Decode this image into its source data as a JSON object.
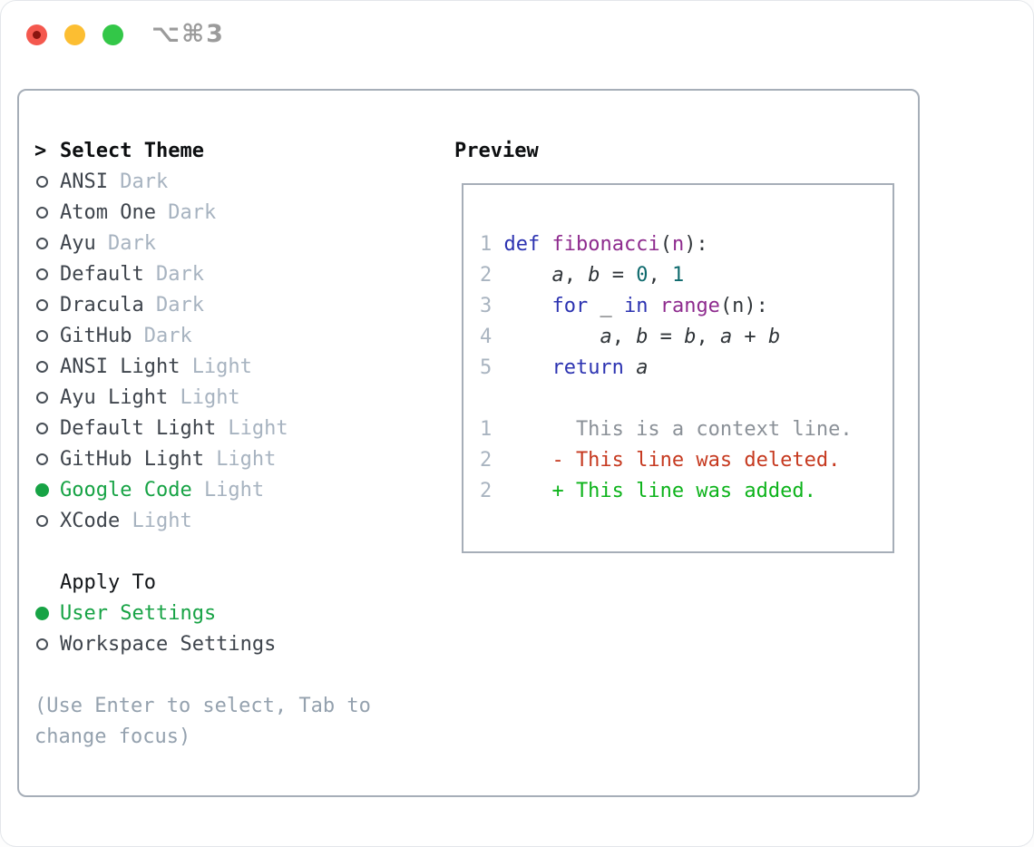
{
  "window": {
    "title": "⌥⌘3"
  },
  "titlebar_buttons": {
    "close": "close-button",
    "minimize": "minimize-button",
    "zoom": "zoom-button"
  },
  "theme_picker": {
    "prompt": ">",
    "title": "Select Theme",
    "items": [
      {
        "name": "ANSI",
        "variant": "Dark",
        "selected": false
      },
      {
        "name": "Atom One",
        "variant": "Dark",
        "selected": false
      },
      {
        "name": "Ayu",
        "variant": "Dark",
        "selected": false
      },
      {
        "name": "Default",
        "variant": "Dark",
        "selected": false
      },
      {
        "name": "Dracula",
        "variant": "Dark",
        "selected": false
      },
      {
        "name": "GitHub",
        "variant": "Dark",
        "selected": false
      },
      {
        "name": "ANSI Light",
        "variant": "Light",
        "selected": false
      },
      {
        "name": "Ayu Light",
        "variant": "Light",
        "selected": false
      },
      {
        "name": "Default Light",
        "variant": "Light",
        "selected": false
      },
      {
        "name": "GitHub Light",
        "variant": "Light",
        "selected": false
      },
      {
        "name": "Google Code",
        "variant": "Light",
        "selected": true
      },
      {
        "name": "XCode",
        "variant": "Light",
        "selected": false
      }
    ],
    "apply_to": {
      "label": "Apply To",
      "options": [
        {
          "name": "User Settings",
          "selected": true
        },
        {
          "name": "Workspace Settings",
          "selected": false
        }
      ]
    },
    "hint_line1": "(Use Enter to select, Tab to",
    "hint_line2": "change focus)"
  },
  "preview": {
    "label": "Preview",
    "code_lines": [
      {
        "n": "1",
        "tokens": [
          [
            "kw",
            "def"
          ],
          [
            "pl",
            " "
          ],
          [
            "fn",
            "fibonacci"
          ],
          [
            "pl",
            "("
          ],
          [
            "fn",
            "n"
          ],
          [
            "pl",
            "):"
          ]
        ]
      },
      {
        "n": "2",
        "tokens": [
          [
            "pl",
            "    "
          ],
          [
            "var",
            "a"
          ],
          [
            "pl",
            ", "
          ],
          [
            "var",
            "b"
          ],
          [
            "pl",
            " = "
          ],
          [
            "num",
            "0"
          ],
          [
            "pl",
            ", "
          ],
          [
            "num",
            "1"
          ]
        ]
      },
      {
        "n": "3",
        "tokens": [
          [
            "pl",
            "    "
          ],
          [
            "kw",
            "for"
          ],
          [
            "pl",
            " _ "
          ],
          [
            "kw",
            "in"
          ],
          [
            "pl",
            " "
          ],
          [
            "fn",
            "range"
          ],
          [
            "pl",
            "(n):"
          ]
        ]
      },
      {
        "n": "4",
        "tokens": [
          [
            "pl",
            "        "
          ],
          [
            "var",
            "a"
          ],
          [
            "pl",
            ", "
          ],
          [
            "var",
            "b"
          ],
          [
            "pl",
            " = "
          ],
          [
            "var",
            "b"
          ],
          [
            "pl",
            ", "
          ],
          [
            "var",
            "a"
          ],
          [
            "pl",
            " + "
          ],
          [
            "var",
            "b"
          ]
        ]
      },
      {
        "n": "5",
        "tokens": [
          [
            "pl",
            "    "
          ],
          [
            "kw",
            "return"
          ],
          [
            "pl",
            " "
          ],
          [
            "var",
            "a"
          ]
        ]
      }
    ],
    "diff_lines": [
      {
        "n": "1",
        "kind": "ctx",
        "text": "      This is a context line."
      },
      {
        "n": "2",
        "kind": "del",
        "text": "    - This line was deleted."
      },
      {
        "n": "2",
        "kind": "add",
        "text": "    + This line was added."
      }
    ]
  },
  "colors": {
    "border": "#a6aeb8",
    "item": "#3e444c",
    "muted": "#a7b3c0",
    "hint": "#94a1ae",
    "heading": "#0c0e10",
    "green": "#17a345",
    "kw": "#2c33b1",
    "fn": "#8e2b8e",
    "num": "#0e6a6d",
    "plain": "#303539",
    "ctx": "#8b9198",
    "del": "#c63a20",
    "add": "#0db31b",
    "lineno": "#a9b4c0",
    "titlegray": "#9b9b9b",
    "red": "#f4584e",
    "reddot": "#8a150f",
    "yellow": "#fcbe32",
    "greenlight": "#33c748"
  }
}
